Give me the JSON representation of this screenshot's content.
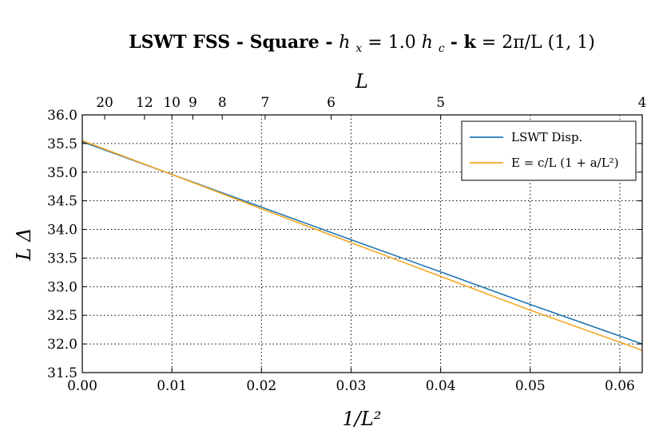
{
  "chart_data": {
    "type": "line",
    "title": {
      "bold_part": "LSWT FSS - Square - ",
      "math_part_1": "h",
      "math_sub_1": "x",
      "math_part_2": " = 1.0 ",
      "math_part_3": "h",
      "math_sub_3": "c",
      "bold_part_2": " - k",
      "math_part_4": " = 2π/L (1, 1)"
    },
    "xlabel": "1/L²",
    "ylabel": "L Δ",
    "x2label": "L",
    "xlim": [
      0.0,
      0.0625
    ],
    "ylim": [
      31.5,
      36.0
    ],
    "xticks": [
      0.0,
      0.01,
      0.02,
      0.03,
      0.04,
      0.05,
      0.06
    ],
    "xtick_labels": [
      "0.00",
      "0.01",
      "0.02",
      "0.03",
      "0.04",
      "0.05",
      "0.06"
    ],
    "yticks": [
      31.5,
      32.0,
      32.5,
      33.0,
      33.5,
      34.0,
      34.5,
      35.0,
      35.5,
      36.0
    ],
    "ytick_labels": [
      "31.5",
      "32.0",
      "32.5",
      "33.0",
      "33.5",
      "34.0",
      "34.5",
      "35.0",
      "35.5",
      "36.0"
    ],
    "top_ticks": [
      20,
      12,
      10,
      9,
      8,
      7,
      6,
      5,
      4
    ],
    "top_tick_labels": [
      "20",
      "12",
      "10",
      "9",
      "8",
      "7",
      "6",
      "5",
      "4"
    ],
    "grid": true,
    "legend_position": "top-right",
    "series": [
      {
        "name": "LSWT Disp.",
        "color": "#1f77b4",
        "x": [
          0.0,
          0.01,
          0.02,
          0.03,
          0.04,
          0.05,
          0.0625
        ],
        "y": [
          35.53,
          34.96,
          34.39,
          33.82,
          33.26,
          32.69,
          32.0
        ]
      },
      {
        "name": "E = c/L (1 + a/L²)",
        "color": "#f5a623",
        "x": [
          0.0,
          0.01,
          0.02,
          0.03,
          0.04,
          0.05,
          0.0625
        ],
        "y": [
          35.55,
          34.96,
          34.36,
          33.77,
          33.18,
          32.59,
          31.89
        ]
      }
    ]
  }
}
